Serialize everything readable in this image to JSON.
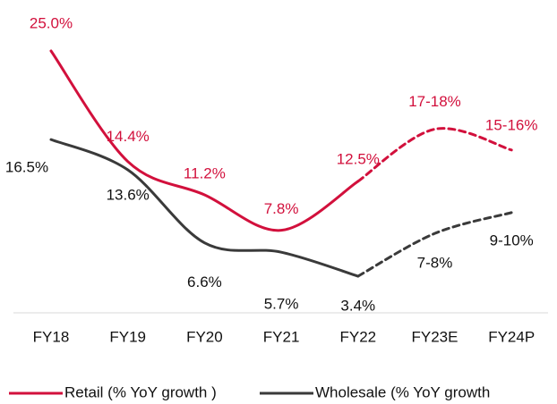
{
  "chart_data": {
    "type": "line",
    "categories": [
      "FY18",
      "FY19",
      "FY20",
      "FY21",
      "FY22",
      "FY23E",
      "FY24P"
    ],
    "forecast_from": 4,
    "series": [
      {
        "name": "Retail (% YoY growth )",
        "color": "#d2103c",
        "values": [
          25.0,
          14.4,
          11.2,
          7.8,
          12.5,
          17.5,
          15.5
        ],
        "value_labels": [
          "25.0%",
          "14.4%",
          "11.2%",
          "7.8%",
          "12.5%",
          "17-18%",
          "15-16%"
        ]
      },
      {
        "name": "Wholesale (% YoY growth",
        "color": "#3a3a3a",
        "values": [
          16.5,
          13.6,
          6.6,
          5.7,
          3.4,
          7.5,
          9.5
        ],
        "value_labels": [
          "16.5%",
          "13.6%",
          "6.6%",
          "5.7%",
          "3.4%",
          "7-8%",
          "9-10%"
        ]
      }
    ]
  }
}
